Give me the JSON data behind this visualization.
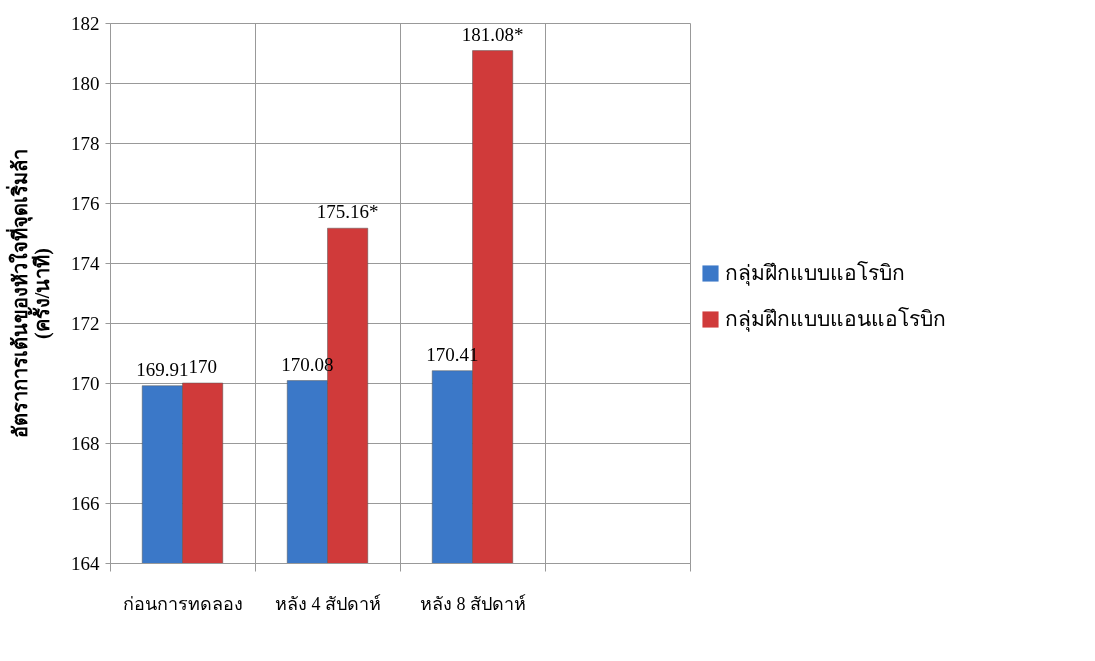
{
  "chart_data": {
    "type": "bar",
    "ylabel": "อัตราการเต้นของหัวใจที่จุดเริ่มล้า\n(ครั้ง/นาที)",
    "categories": [
      "ก่อนการทดลอง",
      "หลัง 4 สัปดาห์",
      "หลัง 8 สัปดาห์",
      null
    ],
    "series": [
      {
        "name": "กลุ่มฝึกแบบแอโรบิก",
        "color": "#3b78c8",
        "values": [
          169.91,
          170.08,
          170.41,
          null
        ],
        "value_labels": [
          "169.91",
          "170.08",
          "170.41",
          null
        ]
      },
      {
        "name": "กลุ่มฝึกแบบแอนแอโรบิก",
        "color": "#d03a3a",
        "values": [
          170,
          175.16,
          181.08,
          null
        ],
        "value_labels": [
          "170",
          "175.16*",
          "181.08*",
          null
        ]
      }
    ],
    "ylim": [
      164,
      182
    ],
    "yticks": [
      164,
      166,
      168,
      170,
      172,
      174,
      176,
      178,
      180,
      182
    ],
    "grid": true,
    "legend": "right"
  }
}
